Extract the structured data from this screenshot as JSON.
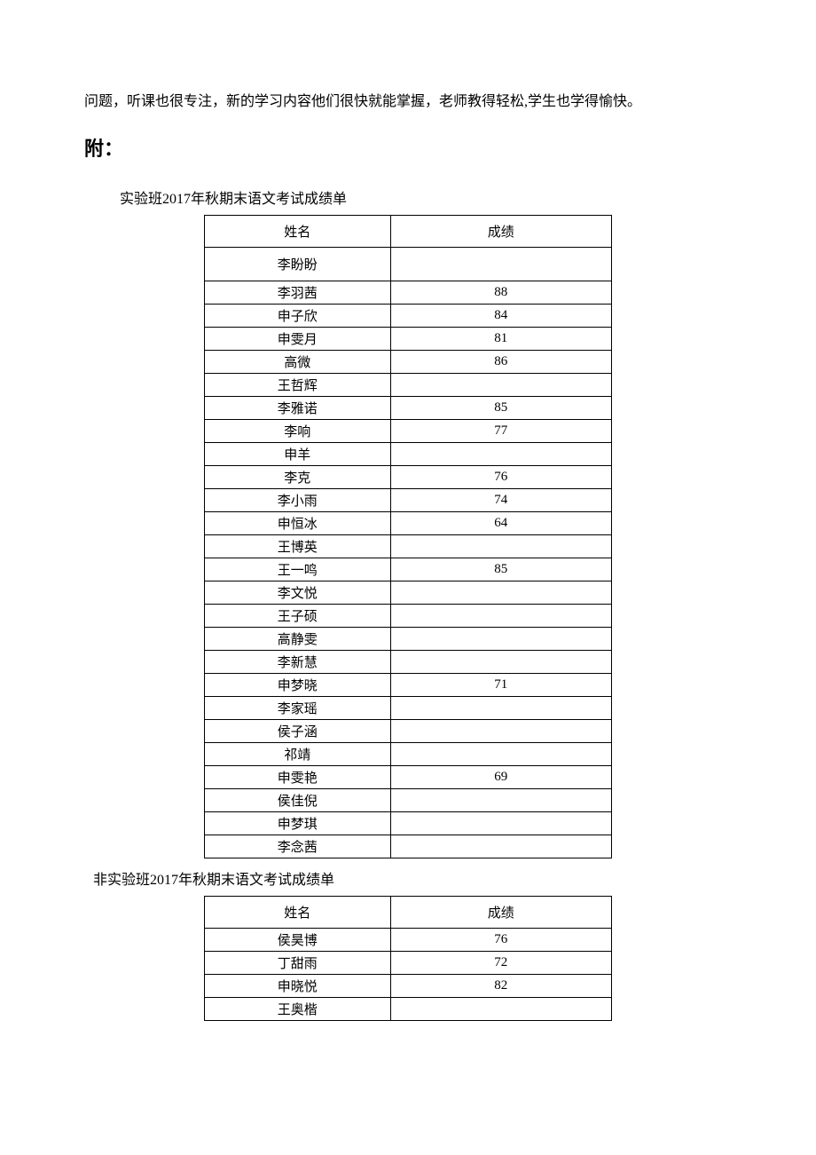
{
  "intro_paragraph": "问题，听课也很专注，新的学习内容他们很快就能掌握，老师教得轻松,学生也学得愉快。",
  "appendix_label": "附：",
  "table1": {
    "title": "实验班2017年秋期末语文考试成绩单",
    "header_name": "姓名",
    "header_score": "成绩",
    "rows": [
      {
        "name": "李盼盼",
        "score": ""
      },
      {
        "name": "李羽茜",
        "score": "88"
      },
      {
        "name": "申子欣",
        "score": "84"
      },
      {
        "name": "申雯月",
        "score": "81"
      },
      {
        "name": "高微",
        "score": "86"
      },
      {
        "name": "王哲辉",
        "score": ""
      },
      {
        "name": "李雅诺",
        "score": "85"
      },
      {
        "name": "李响",
        "score": "77"
      },
      {
        "name": "申羊",
        "score": ""
      },
      {
        "name": "李克",
        "score": "76"
      },
      {
        "name": "李小雨",
        "score": "74"
      },
      {
        "name": "申恒冰",
        "score": "64"
      },
      {
        "name": "王博英",
        "score": ""
      },
      {
        "name": "王一鸣",
        "score": "85"
      },
      {
        "name": "李文悦",
        "score": ""
      },
      {
        "name": "王子硕",
        "score": ""
      },
      {
        "name": "高静雯",
        "score": ""
      },
      {
        "name": "李新慧",
        "score": ""
      },
      {
        "name": "申梦晓",
        "score": "71"
      },
      {
        "name": "李家瑶",
        "score": ""
      },
      {
        "name": "侯子涵",
        "score": ""
      },
      {
        "name": "祁靖",
        "score": ""
      },
      {
        "name": "申雯艳",
        "score": "69"
      },
      {
        "name": "侯佳倪",
        "score": ""
      },
      {
        "name": "申梦琪",
        "score": ""
      },
      {
        "name": "李念茜",
        "score": ""
      }
    ]
  },
  "table2": {
    "title": "非实验班2017年秋期末语文考试成绩单",
    "header_name": "姓名",
    "header_score": "成绩",
    "rows": [
      {
        "name": "侯昊博",
        "score": "76"
      },
      {
        "name": "丁甜雨",
        "score": "72"
      },
      {
        "name": "申晓悦",
        "score": "82"
      },
      {
        "name": "王奥楷",
        "score": ""
      }
    ]
  },
  "colors": {
    "text": "#000000",
    "background": "#ffffff",
    "border": "#000000"
  }
}
